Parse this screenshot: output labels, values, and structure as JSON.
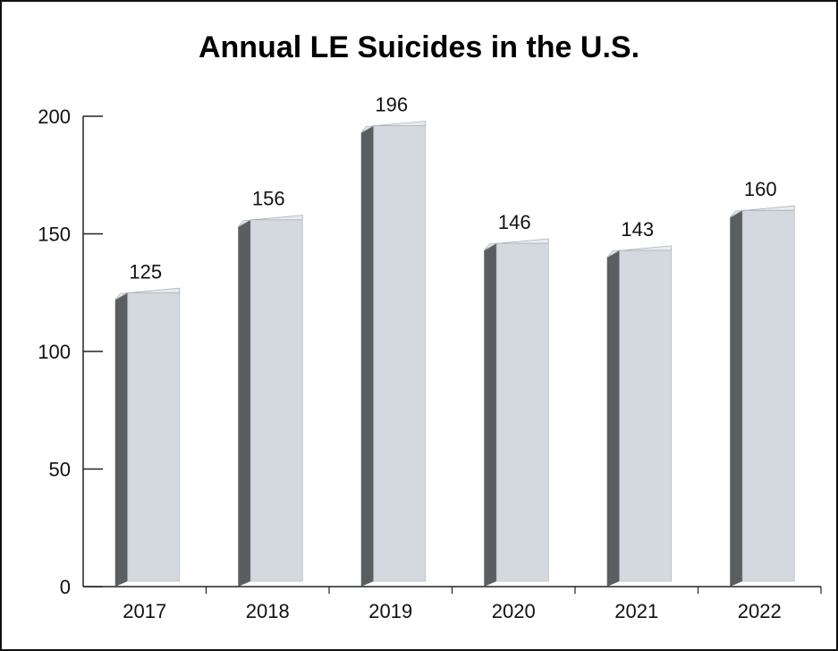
{
  "chart_data": {
    "type": "bar",
    "title": "Annual LE Suicides in the U.S.",
    "categories": [
      "2017",
      "2018",
      "2019",
      "2020",
      "2021",
      "2022"
    ],
    "values": [
      125,
      156,
      196,
      146,
      143,
      160
    ],
    "data_labels": [
      "125",
      "156",
      "196",
      "146",
      "143",
      "160"
    ],
    "ylim": [
      0,
      200
    ],
    "yticks": [
      0,
      50,
      100,
      150,
      200
    ],
    "ytick_labels": [
      "0",
      "50",
      "100",
      "150",
      "200"
    ],
    "xlabel": "",
    "ylabel": "",
    "grid": false,
    "legend": "none",
    "colors": {
      "bar_front": "#d3d9de",
      "bar_side": "#5b5e61",
      "bar_top": "#e8ecef",
      "axis": "#222222",
      "text": "#111111"
    }
  }
}
